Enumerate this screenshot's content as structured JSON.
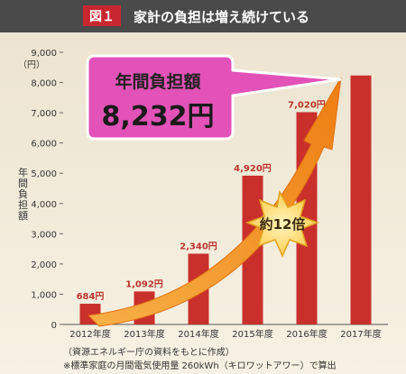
{
  "header": {
    "figure_label": "図１",
    "title": "家計の負担は増え続けている"
  },
  "callout": {
    "title": "年間負担額",
    "value": "8,232円"
  },
  "multiplier_label": "約12倍",
  "notes": [
    "（資源エネルギー庁の資料をもとに作成）",
    "※標準家庭の月間電気使用量 260kWh（キロワットアワー）で算出"
  ],
  "colors": {
    "header_bg": "#4a4a4a",
    "label_bg": "#c8272f",
    "bar": "#c9302c",
    "bar_label": "#b8352d",
    "callout_fill": "#e252b8",
    "callout_border": "#ffffff",
    "arrow": "#f08a1c",
    "burst": "#ffd64a",
    "background": "#f4ecdc",
    "axis_text": "#333333"
  },
  "chart_data": {
    "type": "bar",
    "categories": [
      "2012年度",
      "2013年度",
      "2014年度",
      "2015年度",
      "2016年度",
      "2017年度"
    ],
    "values": [
      684,
      1092,
      2340,
      4920,
      7020,
      8232
    ],
    "data_labels": [
      "684円",
      "1,092円",
      "2,340円",
      "4,920円",
      "7,020円",
      ""
    ],
    "ylabel": "年間負担額",
    "ylabel_unit": "（円）",
    "ylim": [
      0,
      9000
    ],
    "yticks": [
      0,
      1000,
      2000,
      3000,
      4000,
      5000,
      6000,
      7000,
      8000,
      9000
    ],
    "ytick_labels": [
      "0",
      "1,000",
      "2,000",
      "3,000",
      "4,000",
      "5,000",
      "6,000",
      "7,000",
      "8,000",
      "9,000"
    ],
    "grid": false,
    "legend": "none"
  }
}
